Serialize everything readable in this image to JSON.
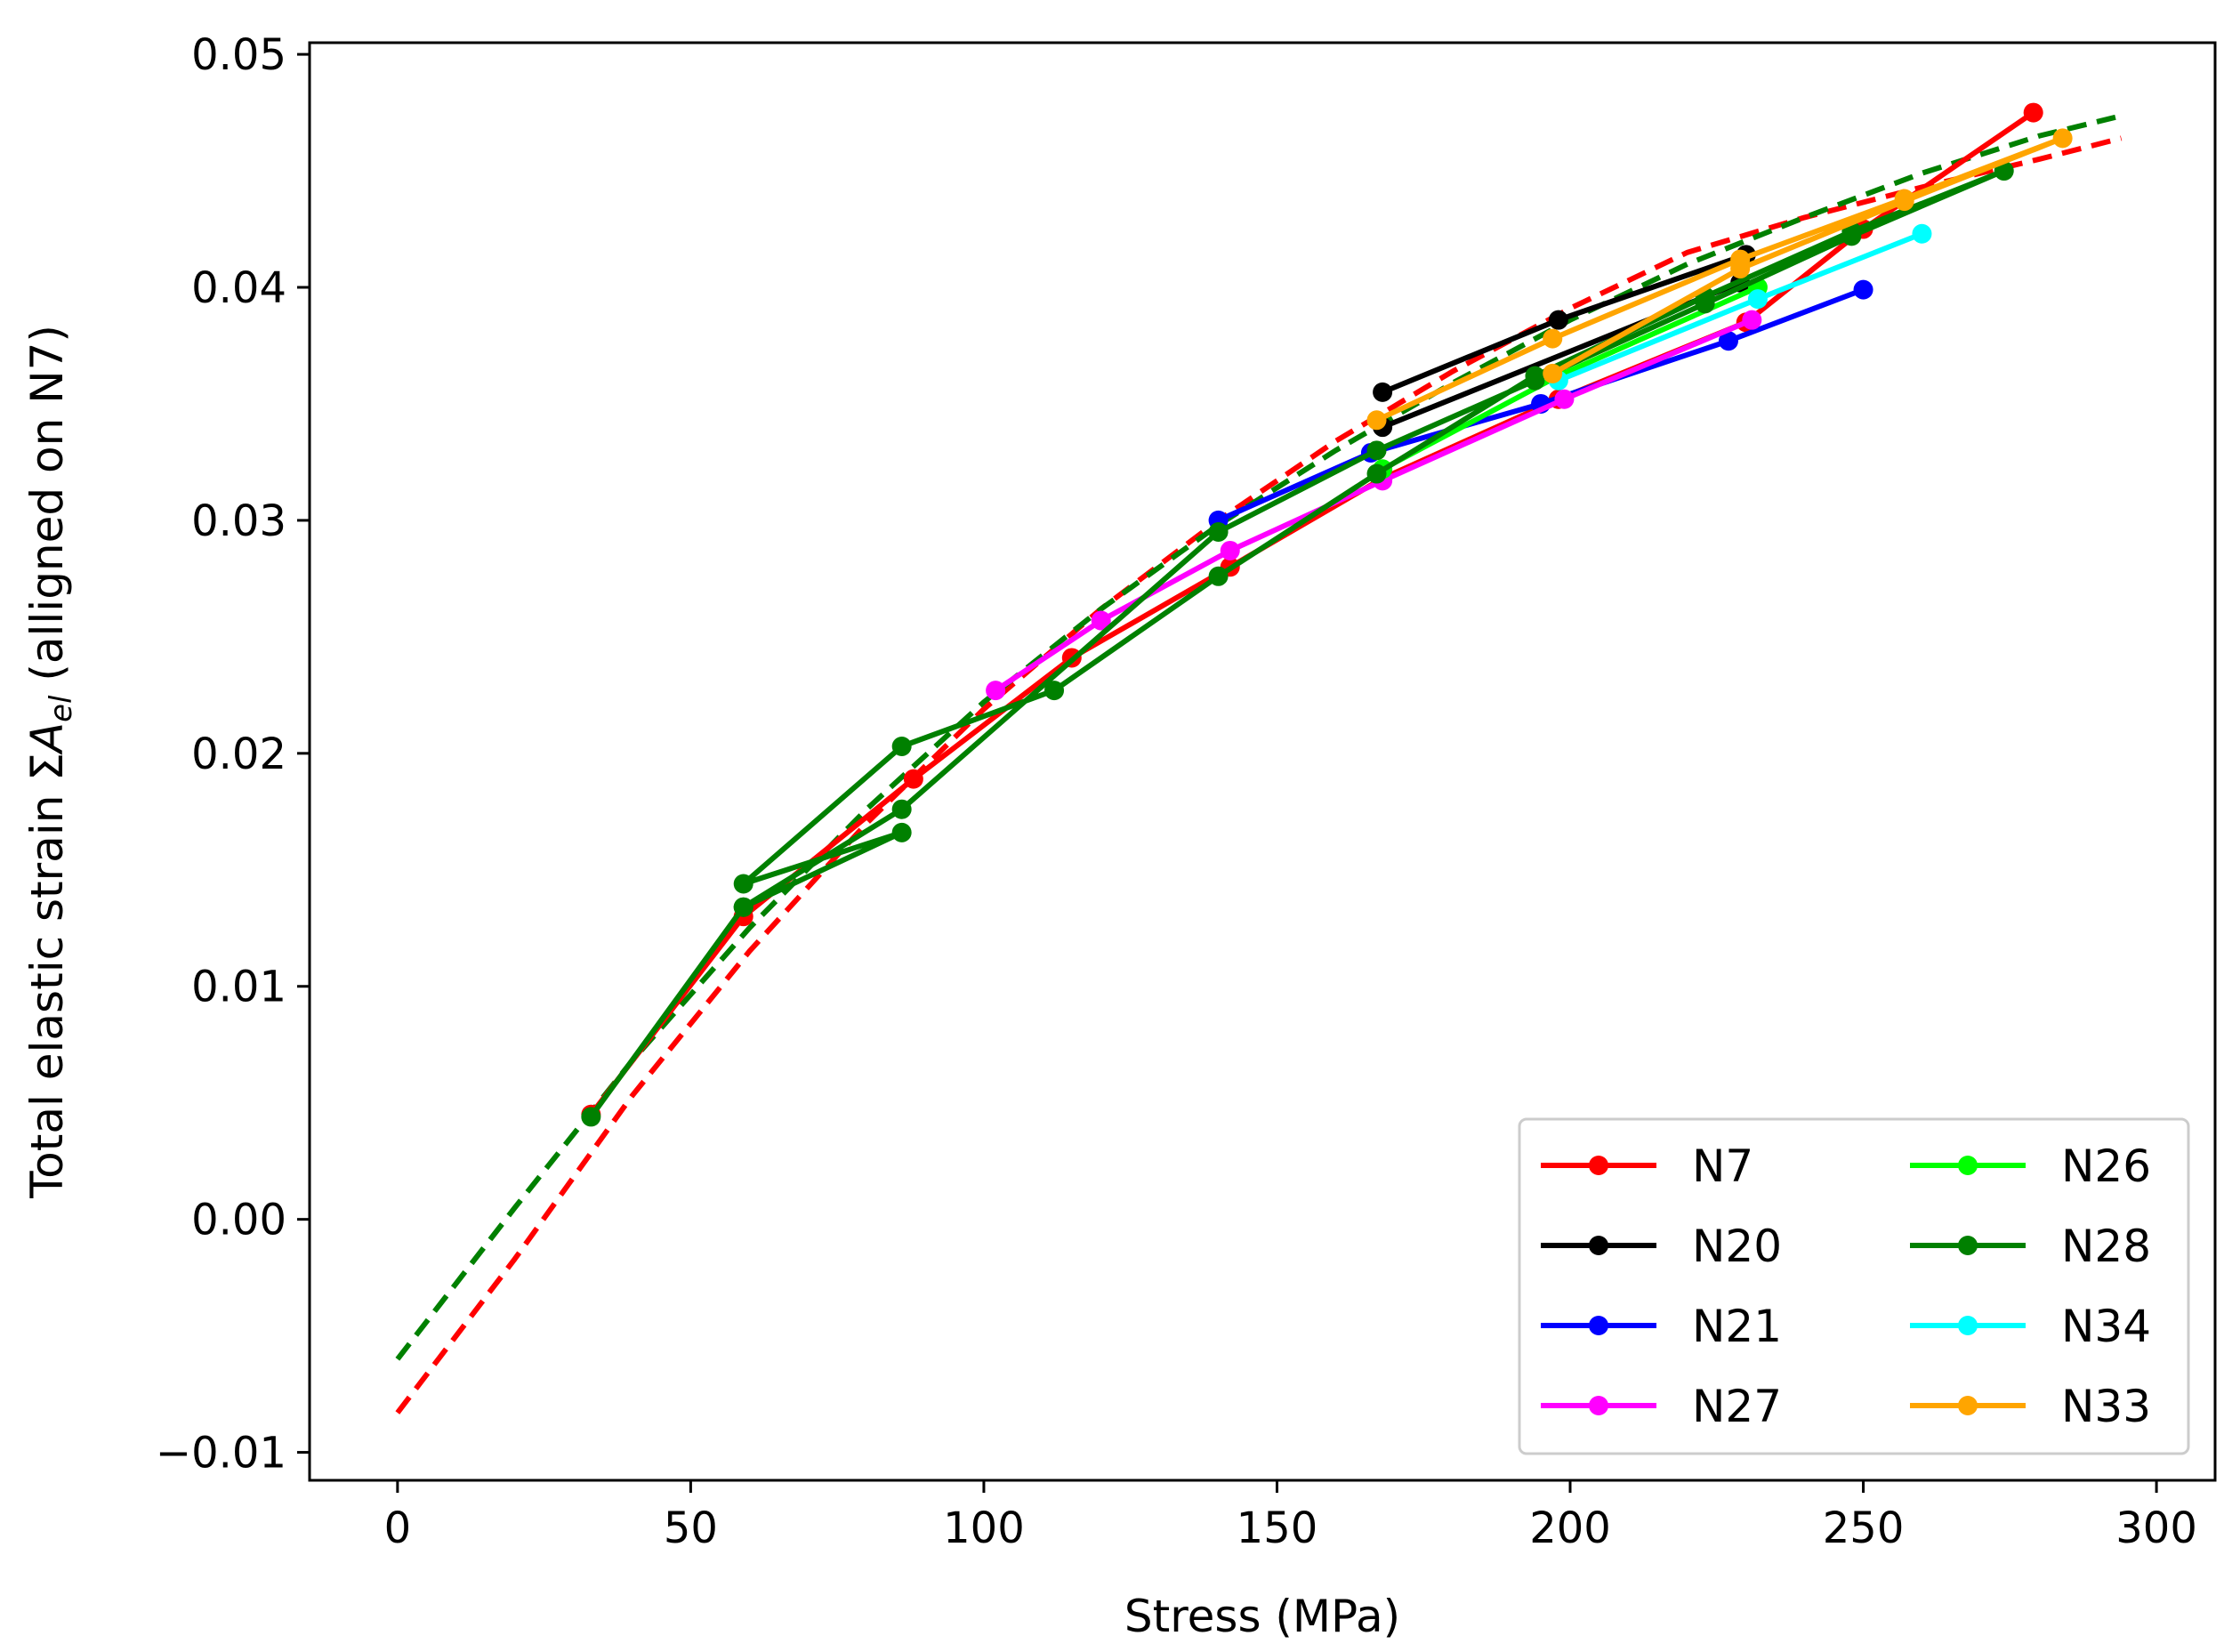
{
  "chart_data": {
    "type": "line",
    "title": "",
    "xlabel": "Stress (MPa)",
    "ylabel": {
      "prefix": "Total elastic strain Σ",
      "symbol": "A",
      "subscript": "el",
      "suffix": " (alligned on N7)"
    },
    "xlim": [
      -15,
      310
    ],
    "ylim": [
      -0.0112,
      0.0505
    ],
    "xticks": [
      0,
      50,
      100,
      150,
      200,
      250,
      300
    ],
    "xtick_labels": [
      "0",
      "50",
      "100",
      "150",
      "200",
      "250",
      "300"
    ],
    "yticks": [
      -0.01,
      0.0,
      0.01,
      0.02,
      0.03,
      0.04,
      0.05
    ],
    "ytick_labels": [
      "−0.01",
      "0.00",
      "0.01",
      "0.02",
      "0.03",
      "0.04",
      "0.05"
    ],
    "grid": false,
    "legend": {
      "placement": "lower-right",
      "columns": 2
    },
    "series": [
      {
        "name": "N7",
        "color": "#ff0000",
        "x": [
          33,
          59,
          88,
          115,
          142,
          168,
          198,
          230,
          250,
          279
        ],
        "y": [
          0.0045,
          0.013,
          0.0189,
          0.0241,
          0.028,
          0.0318,
          0.0352,
          0.0385,
          0.0425,
          0.0475
        ]
      },
      {
        "name": "N20",
        "color": "#000000",
        "x": [
          168,
          198,
          230,
          229,
          168
        ],
        "y": [
          0.0355,
          0.0386,
          0.0414,
          0.0402,
          0.034
        ]
      },
      {
        "name": "N21",
        "color": "#0000ff",
        "x": [
          140,
          166,
          195,
          227,
          250
        ],
        "y": [
          0.03,
          0.0329,
          0.035,
          0.0377,
          0.0399
        ]
      },
      {
        "name": "N27",
        "color": "#ff00ff",
        "x": [
          102,
          120,
          142,
          168,
          199,
          231
        ],
        "y": [
          0.0227,
          0.0257,
          0.0287,
          0.0317,
          0.0352,
          0.0386
        ]
      },
      {
        "name": "N26",
        "color": "#00ff00",
        "x": [
          168,
          198,
          232
        ],
        "y": [
          0.0322,
          0.0362,
          0.04
        ]
      },
      {
        "name": "N28",
        "color": "#008000",
        "x": [
          33,
          59,
          86,
          59,
          86,
          112,
          140,
          167,
          194,
          223,
          248,
          274,
          248,
          223,
          194,
          167,
          140,
          86,
          59
        ],
        "y": [
          0.0044,
          0.0134,
          0.0166,
          0.0144,
          0.0203,
          0.0227,
          0.0276,
          0.032,
          0.0362,
          0.0396,
          0.0424,
          0.045,
          0.0422,
          0.0393,
          0.036,
          0.033,
          0.0295,
          0.0176,
          0.0134
        ]
      },
      {
        "name": "N34",
        "color": "#00ffff",
        "x": [
          198,
          232,
          260
        ],
        "y": [
          0.036,
          0.0395,
          0.0423
        ]
      },
      {
        "name": "N33",
        "color": "#ffa500",
        "x": [
          167,
          197,
          229,
          257,
          284,
          257,
          229,
          197
        ],
        "y": [
          0.0343,
          0.0378,
          0.0412,
          0.0438,
          0.0464,
          0.0437,
          0.0408,
          0.0363
        ]
      }
    ],
    "fits": [
      {
        "name": "fit-red",
        "color": "#ff0000",
        "style": "dashed",
        "x": [
          0,
          20,
          40,
          60,
          80,
          100,
          120,
          140,
          160,
          180,
          200,
          220,
          240,
          260,
          280,
          294
        ],
        "y": [
          -0.0083,
          -0.0017,
          0.0053,
          0.0115,
          0.017,
          0.0219,
          0.0262,
          0.03,
          0.0334,
          0.0364,
          0.0391,
          0.0415,
          0.043,
          0.0443,
          0.0455,
          0.0464
        ]
      },
      {
        "name": "fit-green",
        "color": "#008000",
        "style": "dashed",
        "x": [
          0,
          20,
          40,
          60,
          80,
          100,
          120,
          140,
          160,
          180,
          200,
          220,
          240,
          260,
          280,
          293
        ],
        "y": [
          -0.006,
          0.0005,
          0.0068,
          0.0125,
          0.0176,
          0.0222,
          0.0262,
          0.0298,
          0.033,
          0.0359,
          0.0386,
          0.041,
          0.043,
          0.0449,
          0.0465,
          0.0473
        ]
      }
    ]
  }
}
